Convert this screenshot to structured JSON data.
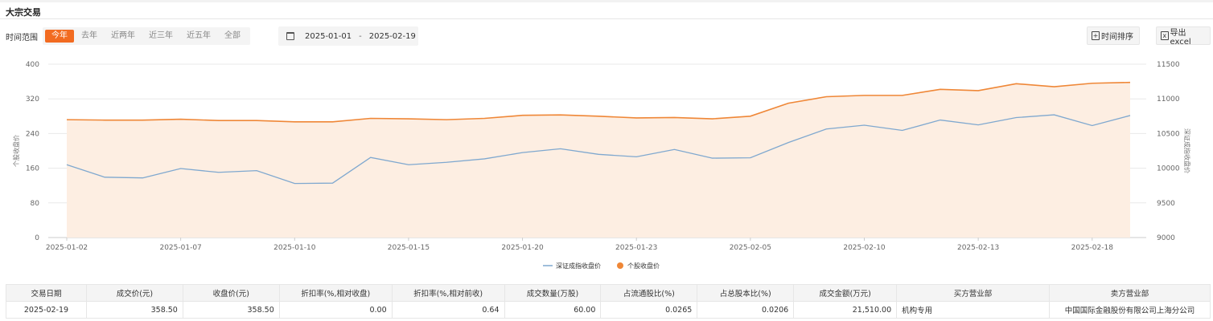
{
  "page": {
    "title": "大宗交易"
  },
  "filters": {
    "label": "时间范围",
    "ranges": [
      "今年",
      "去年",
      "近两年",
      "近三年",
      "近五年",
      "全部"
    ],
    "active_index": 0,
    "date_start": "2025-01-01",
    "date_end": "2025-02-19",
    "date_separator": "-"
  },
  "toolbar": {
    "sort_label": "时间排序",
    "export_label": "导出excel"
  },
  "colors": {
    "accent": "#f26b21",
    "index_line": "#7fa8cf",
    "stock_line": "#ef8737",
    "area_fill": "#fdeee2"
  },
  "chart_data": {
    "type": "line",
    "x": [
      "2025-01-02",
      "2025-01-03",
      "2025-01-06",
      "2025-01-07",
      "2025-01-08",
      "2025-01-09",
      "2025-01-10",
      "2025-01-13",
      "2025-01-14",
      "2025-01-15",
      "2025-01-16",
      "2025-01-17",
      "2025-01-20",
      "2025-01-21",
      "2025-01-22",
      "2025-01-23",
      "2025-01-24",
      "2025-01-27",
      "2025-02-05",
      "2025-02-06",
      "2025-02-07",
      "2025-02-10",
      "2025-02-11",
      "2025-02-12",
      "2025-02-13",
      "2025-02-14",
      "2025-02-17",
      "2025-02-18",
      "2025-02-19"
    ],
    "x_tick_labels": [
      "2025-01-02",
      "2025-01-07",
      "2025-01-10",
      "2025-01-15",
      "2025-01-20",
      "2025-01-23",
      "2025-02-05",
      "2025-02-10",
      "2025-02-13",
      "2025-02-18"
    ],
    "series": [
      {
        "name": "深证成指收盘价",
        "axis": "right",
        "values": [
          10050,
          9870,
          9860,
          9995,
          9940,
          9965,
          9780,
          9785,
          10155,
          10050,
          10085,
          10135,
          10225,
          10280,
          10200,
          10165,
          10270,
          10145,
          10150,
          10370,
          10565,
          10620,
          10545,
          10695,
          10625,
          10730,
          10770,
          10615,
          10760
        ]
      },
      {
        "name": "个股收盘价",
        "axis": "left",
        "values": [
          272,
          271,
          271,
          273,
          270,
          270,
          267,
          267,
          275,
          274,
          272,
          275,
          282,
          283,
          280,
          276,
          277,
          274,
          280,
          310,
          325,
          328,
          328,
          342,
          339,
          355,
          348,
          356,
          358
        ]
      }
    ],
    "ylabel_left": "个股收盘价",
    "ylabel_right": "深证成指收盘价",
    "ylim_left": [
      0,
      400
    ],
    "yticks_left": [
      0,
      80,
      160,
      240,
      320,
      400
    ],
    "ylim_right": [
      9000,
      11500
    ],
    "yticks_right": [
      9000,
      9500,
      10000,
      10500,
      11000,
      11500
    ],
    "grid": true,
    "legend_position": "bottom-center"
  },
  "table": {
    "columns": [
      "交易日期",
      "成交价(元)",
      "收盘价(元)",
      "折扣率(%,相对收盘)",
      "折扣率(%,相对前收)",
      "成交数量(万股)",
      "占流通股比(%)",
      "占总股本比(%)",
      "成交金额(万元)",
      "买方营业部",
      "卖方营业部"
    ],
    "rows": [
      [
        "2025-02-19",
        "358.50",
        "358.50",
        "0.00",
        "0.64",
        "60.00",
        "0.0265",
        "0.0206",
        "21,510.00",
        "机构专用",
        "中国国际金融股份有限公司上海分公司"
      ]
    ]
  }
}
